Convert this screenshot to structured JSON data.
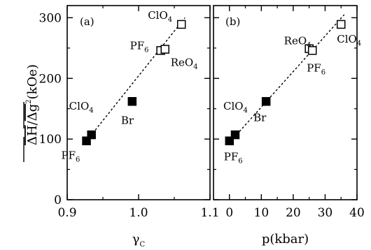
{
  "chart_data": [
    {
      "type": "scatter",
      "panel_label": "(a)",
      "xlabel": "γ",
      "xlabel_sub": "C",
      "ylabel_parts": [
        "ΔH",
        "/",
        "Δg",
        "2",
        "(kOe)"
      ],
      "xlim": [
        0.9,
        1.1
      ],
      "ylim": [
        0,
        320
      ],
      "xticks": [
        0.9,
        1.0,
        1.1
      ],
      "xtick_labels": [
        "0.9",
        "1.0",
        "1.1"
      ],
      "yticks": [
        0,
        100,
        200,
        300
      ],
      "ytick_labels": [
        "0",
        "100",
        "200",
        "300"
      ],
      "fit_line": {
        "x": [
          0.932,
          1.065
        ],
        "y": [
          104,
          300
        ]
      },
      "series": [
        {
          "marker": "filled-square",
          "points": [
            {
              "x": 0.927,
              "y": 97,
              "label": "PF",
              "label_sub": "6"
            },
            {
              "x": 0.934,
              "y": 107,
              "label": "ClO",
              "label_sub": "4"
            },
            {
              "x": 0.991,
              "y": 162,
              "label": "Br",
              "label_sub": ""
            }
          ]
        },
        {
          "marker": "open-square",
          "points": [
            {
              "x": 1.031,
              "y": 246,
              "label": "PF",
              "label_sub": "6"
            },
            {
              "x": 1.037,
              "y": 248,
              "label": "ReO",
              "label_sub": "4"
            },
            {
              "x": 1.06,
              "y": 289,
              "label": "ClO",
              "label_sub": "4"
            }
          ]
        }
      ]
    },
    {
      "type": "scatter",
      "panel_label": "(b)",
      "xlabel": "p(kbar)",
      "xlim": [
        -5,
        40
      ],
      "ylim": [
        0,
        320
      ],
      "xticks": [
        0,
        10,
        20,
        30,
        40
      ],
      "xtick_labels": [
        "0",
        "10",
        "20",
        "30",
        "40"
      ],
      "yticks": [
        0,
        100,
        200,
        300
      ],
      "fit_line": {
        "x": [
          0.5,
          36
        ],
        "y": [
          97,
          305
        ]
      },
      "series": [
        {
          "marker": "filled-square",
          "points": [
            {
              "x": 0,
              "y": 97,
              "label": "PF",
              "label_sub": "6"
            },
            {
              "x": 1.8,
              "y": 107,
              "label": "ClO",
              "label_sub": "4"
            },
            {
              "x": 11.5,
              "y": 162,
              "label": "Br",
              "label_sub": ""
            }
          ]
        },
        {
          "marker": "open-square",
          "points": [
            {
              "x": 25.0,
              "y": 249,
              "label": "ReO",
              "label_sub": "4"
            },
            {
              "x": 26.0,
              "y": 246,
              "label": "PF",
              "label_sub": "6"
            },
            {
              "x": 35.0,
              "y": 289,
              "label": "ClO",
              "label_sub": "4"
            }
          ]
        }
      ]
    }
  ]
}
